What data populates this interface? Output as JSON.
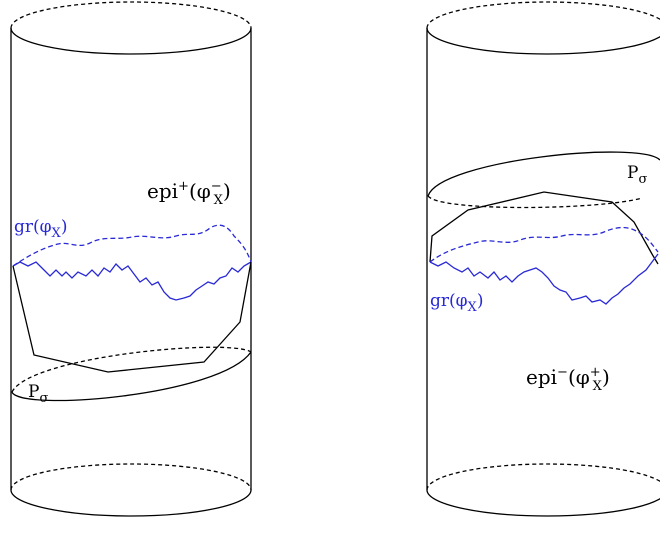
{
  "left": {
    "epi": {
      "base": "epi",
      "sup": "+",
      "phi": "(φ",
      "var_sub": "X",
      "var_sup": "−",
      "close": ")"
    },
    "graph": {
      "text": "gr(φ",
      "sub": "X",
      "close": ")"
    },
    "plane": {
      "base": "P",
      "sub": "σ"
    }
  },
  "right": {
    "epi": {
      "base": "epi",
      "sup": "−",
      "phi": "(φ",
      "var_sub": "X",
      "var_sup": "+",
      "close": ")"
    },
    "graph": {
      "text": "gr(φ",
      "sub": "X",
      "close": ")"
    },
    "plane": {
      "base": "P",
      "sub": "σ"
    }
  },
  "colors": {
    "ink": "#000000",
    "graph": "#2929d6"
  }
}
